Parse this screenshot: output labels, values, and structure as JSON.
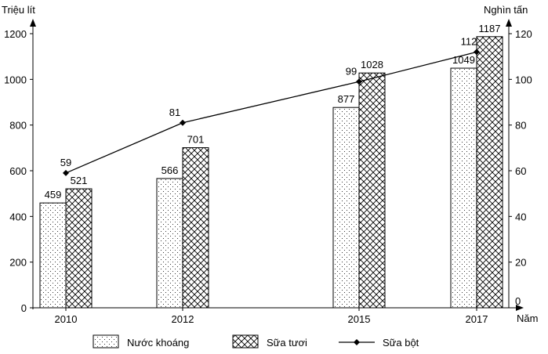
{
  "chart_data": {
    "type": "bar",
    "title": "",
    "xlabel": "Năm",
    "ylabel_left": "Triệu lít",
    "ylabel_right": "Nghìn tấn",
    "categories": [
      "2010",
      "2012",
      "2015",
      "2017"
    ],
    "series": [
      {
        "name": "Nước khoáng",
        "type": "bar",
        "axis": "left",
        "pattern": "dots",
        "values": [
          459,
          566,
          877,
          1049
        ]
      },
      {
        "name": "Sữa tươi",
        "type": "bar",
        "axis": "left",
        "pattern": "crosshatch",
        "values": [
          521,
          701,
          1028,
          1187
        ]
      },
      {
        "name": "Sữa bột",
        "type": "line",
        "axis": "right",
        "marker": "diamond",
        "values": [
          59,
          81,
          99,
          112
        ]
      }
    ],
    "ylim_left": [
      0,
      1200
    ],
    "yticks_left": [
      0,
      200,
      400,
      600,
      800,
      1000,
      1200
    ],
    "ylim_right": [
      0,
      120
    ],
    "yticks_right": [
      0,
      20,
      40,
      60,
      80,
      100,
      120
    ],
    "grid": false,
    "legend_position": "bottom"
  },
  "legend": {
    "items": [
      "Nước khoáng",
      "Sữa tươi",
      "Sữa bột"
    ]
  }
}
